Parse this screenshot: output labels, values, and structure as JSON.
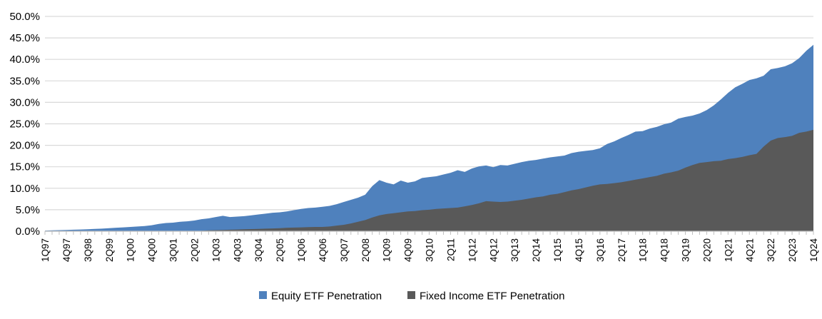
{
  "chart_data": {
    "type": "area",
    "title": "",
    "overlay_note": "Two overlapping area series (not stacked); Fixed Income series is drawn in front of the Equity series",
    "x_frequency": "quarterly",
    "x_start": "1Q97",
    "x_end": "1Q24",
    "n_points": 109,
    "x_tick_every": 3,
    "x_tick_labels": [
      "1Q97",
      "4Q97",
      "3Q98",
      "2Q99",
      "1Q00",
      "4Q00",
      "3Q01",
      "2Q02",
      "1Q03",
      "4Q03",
      "3Q04",
      "2Q05",
      "1Q06",
      "4Q06",
      "3Q07",
      "2Q08",
      "1Q09",
      "4Q09",
      "3Q10",
      "2Q11",
      "1Q12",
      "4Q12",
      "3Q13",
      "2Q14",
      "1Q15",
      "4Q15",
      "3Q16",
      "2Q17",
      "1Q18",
      "4Q18",
      "3Q19",
      "2Q20",
      "1Q21",
      "4Q21",
      "3Q22",
      "2Q23",
      "1Q24"
    ],
    "y_ticks": [
      {
        "value": 0,
        "label": "0.0%"
      },
      {
        "value": 5,
        "label": "5.0%"
      },
      {
        "value": 10,
        "label": "10.0%"
      },
      {
        "value": 15,
        "label": "15.0%"
      },
      {
        "value": 20,
        "label": "20.0%"
      },
      {
        "value": 25,
        "label": "25.0%"
      },
      {
        "value": 30,
        "label": "30.0%"
      },
      {
        "value": 35,
        "label": "35.0%"
      },
      {
        "value": 40,
        "label": "40.0%"
      },
      {
        "value": 45,
        "label": "45.0%"
      },
      {
        "value": 50,
        "label": "50.0%"
      }
    ],
    "ylim": [
      0,
      50
    ],
    "grid": "horizontal",
    "legend_position": "bottom-center",
    "series": [
      {
        "name": "Equity ETF Penetration",
        "color": "#4F81BD",
        "values": [
          0.15,
          0.2,
          0.25,
          0.3,
          0.35,
          0.4,
          0.45,
          0.55,
          0.6,
          0.7,
          0.8,
          0.9,
          1.0,
          1.1,
          1.2,
          1.4,
          1.7,
          1.9,
          2.0,
          2.2,
          2.3,
          2.5,
          2.8,
          3.0,
          3.3,
          3.6,
          3.3,
          3.4,
          3.5,
          3.7,
          3.9,
          4.1,
          4.3,
          4.4,
          4.6,
          4.9,
          5.2,
          5.4,
          5.5,
          5.7,
          5.9,
          6.3,
          6.8,
          7.3,
          7.8,
          8.5,
          10.5,
          11.9,
          11.3,
          10.9,
          11.8,
          11.3,
          11.6,
          12.4,
          12.6,
          12.8,
          13.2,
          13.6,
          14.2,
          13.8,
          14.6,
          15.1,
          15.3,
          14.9,
          15.4,
          15.3,
          15.7,
          16.1,
          16.4,
          16.6,
          16.9,
          17.2,
          17.4,
          17.6,
          18.2,
          18.5,
          18.7,
          18.9,
          19.3,
          20.3,
          20.9,
          21.7,
          22.4,
          23.2,
          23.3,
          23.9,
          24.3,
          24.9,
          25.3,
          26.2,
          26.6,
          26.9,
          27.4,
          28.2,
          29.3,
          30.7,
          32.2,
          33.5,
          34.3,
          35.2,
          35.6,
          36.2,
          37.7,
          38.0,
          38.4,
          39.1,
          40.3,
          42.0,
          43.4
        ]
      },
      {
        "name": "Fixed Income ETF Penetration",
        "color": "#595959",
        "values": [
          0,
          0,
          0,
          0,
          0,
          0,
          0,
          0,
          0,
          0,
          0,
          0,
          0,
          0,
          0,
          0,
          0,
          0,
          0,
          0,
          0,
          0,
          0.1,
          0.2,
          0.25,
          0.3,
          0.35,
          0.4,
          0.45,
          0.5,
          0.55,
          0.6,
          0.65,
          0.7,
          0.8,
          0.85,
          0.9,
          0.95,
          1.0,
          1.0,
          1.1,
          1.3,
          1.5,
          1.8,
          2.2,
          2.6,
          3.2,
          3.7,
          4.0,
          4.2,
          4.4,
          4.6,
          4.7,
          4.9,
          5.0,
          5.2,
          5.3,
          5.4,
          5.5,
          5.8,
          6.1,
          6.5,
          7.0,
          6.9,
          6.8,
          6.9,
          7.1,
          7.3,
          7.6,
          7.9,
          8.1,
          8.5,
          8.7,
          9.1,
          9.5,
          9.8,
          10.2,
          10.6,
          10.9,
          11.0,
          11.2,
          11.4,
          11.7,
          12.0,
          12.3,
          12.6,
          12.9,
          13.4,
          13.7,
          14.1,
          14.8,
          15.4,
          15.9,
          16.1,
          16.3,
          16.4,
          16.8,
          17.0,
          17.3,
          17.7,
          18.0,
          19.7,
          21.1,
          21.7,
          21.9,
          22.2,
          22.9,
          23.2,
          23.6
        ]
      }
    ],
    "colors": {
      "gridline": "#D9D9D9",
      "axis": "#BFBFBF",
      "text": "#000000",
      "background": "#FFFFFF"
    }
  }
}
